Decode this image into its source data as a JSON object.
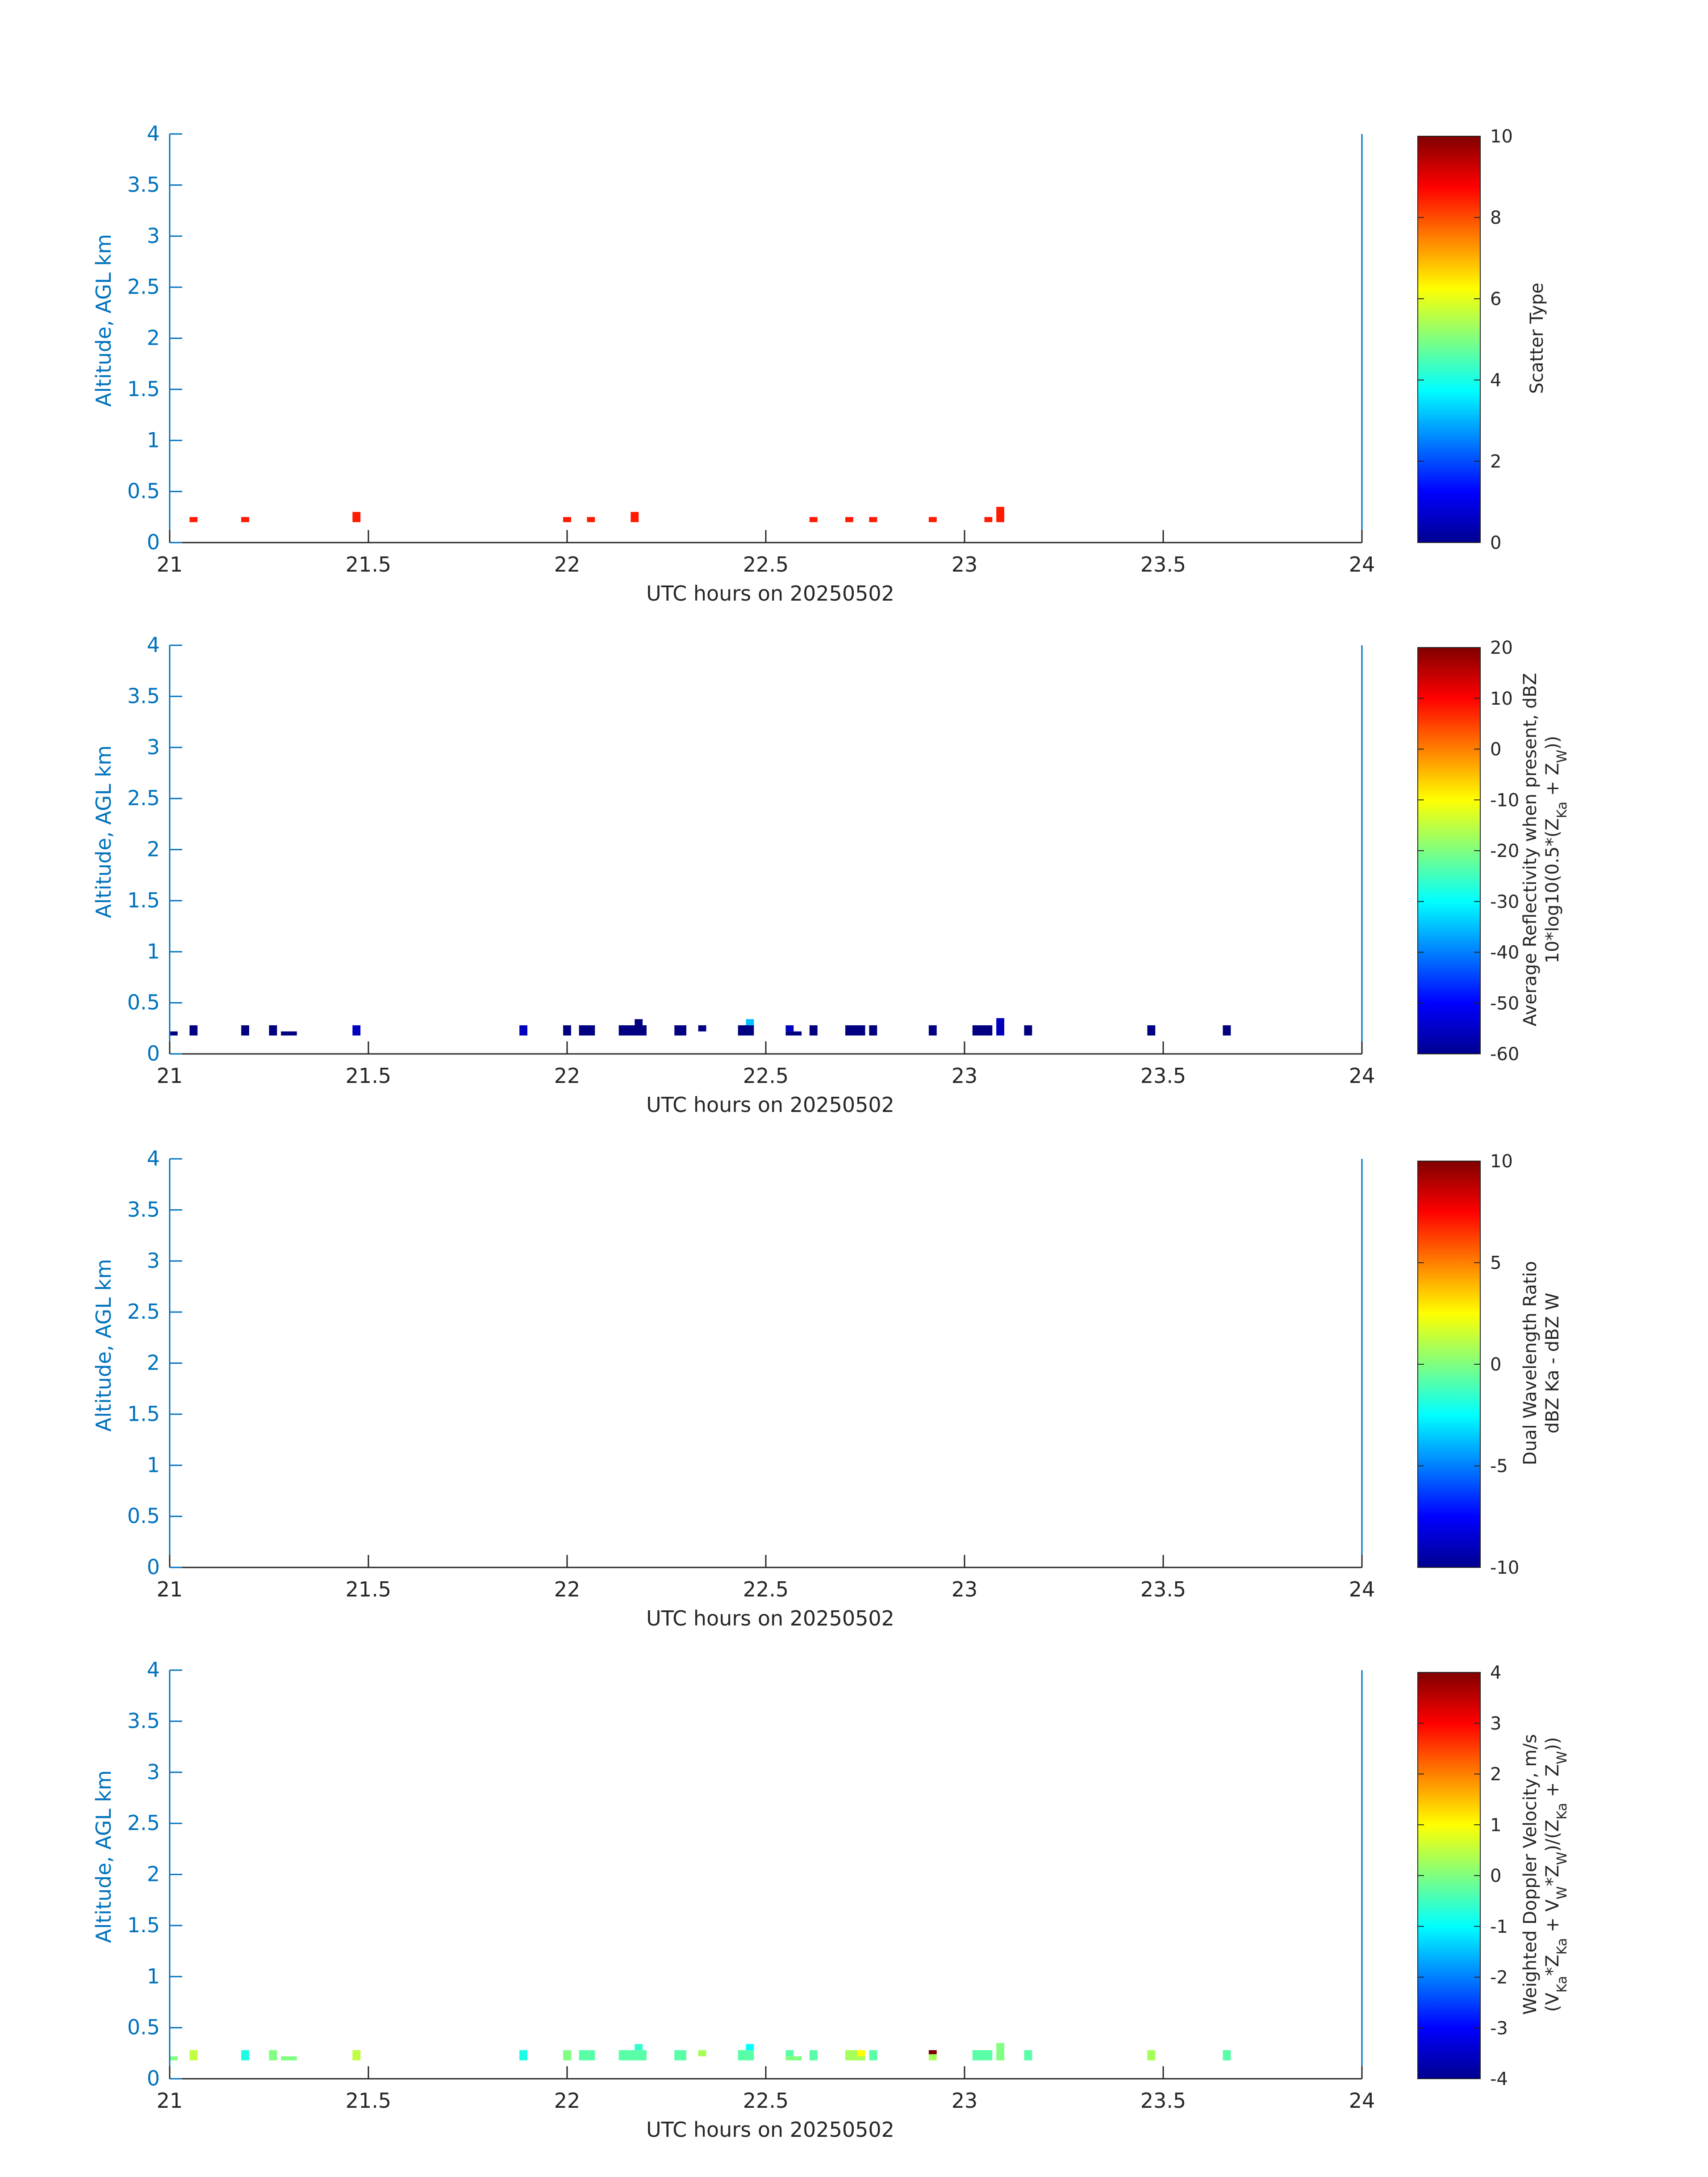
{
  "figure": {
    "date_label": "UTC hours on 20250502",
    "y_axis_label": "Altitude, AGL km"
  },
  "chart_data": [
    {
      "type": "heatmap",
      "xlabel": "UTC hours on 20250502",
      "ylabel": "Altitude, AGL km",
      "xlim": [
        21,
        24
      ],
      "ylim": [
        0,
        4
      ],
      "xticks": [
        "21",
        "21.5",
        "22",
        "22.5",
        "23",
        "23.5",
        "24"
      ],
      "yticks": [
        "0",
        "0.5",
        "1",
        "1.5",
        "2",
        "2.5",
        "3",
        "3.5",
        "4"
      ],
      "colorbar": {
        "label_lines": [
          "Scatter Type"
        ],
        "range": [
          0,
          10
        ],
        "ticks": [
          "0",
          "2",
          "4",
          "6",
          "8",
          "10"
        ],
        "colormap": "jet"
      },
      "cells": [
        {
          "t": [
            21.05,
            21.07
          ],
          "z": [
            0.2,
            0.25
          ],
          "v": 8.5
        },
        {
          "t": [
            21.18,
            21.2
          ],
          "z": [
            0.2,
            0.25
          ],
          "v": 8.5
        },
        {
          "t": [
            21.46,
            21.48
          ],
          "z": [
            0.2,
            0.3
          ],
          "v": 8.5
        },
        {
          "t": [
            21.99,
            22.01
          ],
          "z": [
            0.2,
            0.25
          ],
          "v": 8.5
        },
        {
          "t": [
            22.05,
            22.07
          ],
          "z": [
            0.2,
            0.25
          ],
          "v": 8.5
        },
        {
          "t": [
            22.16,
            22.18
          ],
          "z": [
            0.2,
            0.3
          ],
          "v": 8.5
        },
        {
          "t": [
            22.61,
            22.63
          ],
          "z": [
            0.2,
            0.25
          ],
          "v": 8.5
        },
        {
          "t": [
            22.7,
            22.72
          ],
          "z": [
            0.2,
            0.25
          ],
          "v": 8.5
        },
        {
          "t": [
            22.76,
            22.78
          ],
          "z": [
            0.2,
            0.25
          ],
          "v": 8.5
        },
        {
          "t": [
            22.91,
            22.93
          ],
          "z": [
            0.2,
            0.25
          ],
          "v": 8.5
        },
        {
          "t": [
            23.05,
            23.07
          ],
          "z": [
            0.2,
            0.25
          ],
          "v": 8.5
        },
        {
          "t": [
            23.08,
            23.1
          ],
          "z": [
            0.2,
            0.35
          ],
          "v": 8.5
        }
      ]
    },
    {
      "type": "heatmap",
      "xlabel": "UTC hours on 20250502",
      "ylabel": "Altitude, AGL km",
      "xlim": [
        21,
        24
      ],
      "ylim": [
        0,
        4
      ],
      "xticks": [
        "21",
        "21.5",
        "22",
        "22.5",
        "23",
        "23.5",
        "24"
      ],
      "yticks": [
        "0",
        "0.5",
        "1",
        "1.5",
        "2",
        "2.5",
        "3",
        "3.5",
        "4"
      ],
      "colorbar": {
        "label_lines": [
          "Average Reflectivity when present, dBZ",
          "10*log10(0.5*(Z_Ka + Z_W))"
        ],
        "range": [
          -60,
          20
        ],
        "ticks": [
          "-60",
          "-50",
          "-40",
          "-30",
          "-20",
          "-10",
          "0",
          "10",
          "20"
        ],
        "colormap": "jet"
      },
      "cells": [
        {
          "t": [
            21.0,
            21.02
          ],
          "z": [
            0.18,
            0.22
          ],
          "v": -60
        },
        {
          "t": [
            21.05,
            21.07
          ],
          "z": [
            0.18,
            0.28
          ],
          "v": -60
        },
        {
          "t": [
            21.18,
            21.2
          ],
          "z": [
            0.18,
            0.28
          ],
          "v": -60
        },
        {
          "t": [
            21.25,
            21.27
          ],
          "z": [
            0.18,
            0.28
          ],
          "v": -60
        },
        {
          "t": [
            21.28,
            21.32
          ],
          "z": [
            0.18,
            0.22
          ],
          "v": -60
        },
        {
          "t": [
            21.46,
            21.48
          ],
          "z": [
            0.18,
            0.28
          ],
          "v": -55
        },
        {
          "t": [
            21.88,
            21.9
          ],
          "z": [
            0.18,
            0.28
          ],
          "v": -55
        },
        {
          "t": [
            21.99,
            22.01
          ],
          "z": [
            0.18,
            0.28
          ],
          "v": -60
        },
        {
          "t": [
            22.03,
            22.07
          ],
          "z": [
            0.18,
            0.28
          ],
          "v": -60
        },
        {
          "t": [
            22.13,
            22.2
          ],
          "z": [
            0.18,
            0.28
          ],
          "v": -60
        },
        {
          "t": [
            22.17,
            22.19
          ],
          "z": [
            0.28,
            0.34
          ],
          "v": -60
        },
        {
          "t": [
            22.27,
            22.3
          ],
          "z": [
            0.18,
            0.28
          ],
          "v": -60
        },
        {
          "t": [
            22.33,
            22.35
          ],
          "z": [
            0.22,
            0.28
          ],
          "v": -60
        },
        {
          "t": [
            22.43,
            22.47
          ],
          "z": [
            0.18,
            0.28
          ],
          "v": -60
        },
        {
          "t": [
            22.45,
            22.47
          ],
          "z": [
            0.28,
            0.34
          ],
          "v": -35
        },
        {
          "t": [
            22.55,
            22.59
          ],
          "z": [
            0.18,
            0.22
          ],
          "v": -60
        },
        {
          "t": [
            22.55,
            22.57
          ],
          "z": [
            0.22,
            0.28
          ],
          "v": -55
        },
        {
          "t": [
            22.61,
            22.63
          ],
          "z": [
            0.18,
            0.28
          ],
          "v": -60
        },
        {
          "t": [
            22.7,
            22.75
          ],
          "z": [
            0.18,
            0.28
          ],
          "v": -60
        },
        {
          "t": [
            22.76,
            22.78
          ],
          "z": [
            0.18,
            0.28
          ],
          "v": -60
        },
        {
          "t": [
            22.91,
            22.93
          ],
          "z": [
            0.18,
            0.28
          ],
          "v": -60
        },
        {
          "t": [
            23.02,
            23.07
          ],
          "z": [
            0.18,
            0.28
          ],
          "v": -60
        },
        {
          "t": [
            23.08,
            23.1
          ],
          "z": [
            0.18,
            0.35
          ],
          "v": -55
        },
        {
          "t": [
            23.15,
            23.17
          ],
          "z": [
            0.18,
            0.28
          ],
          "v": -60
        },
        {
          "t": [
            23.46,
            23.48
          ],
          "z": [
            0.18,
            0.28
          ],
          "v": -60
        },
        {
          "t": [
            23.65,
            23.67
          ],
          "z": [
            0.18,
            0.28
          ],
          "v": -60
        }
      ]
    },
    {
      "type": "heatmap",
      "xlabel": "UTC hours on 20250502",
      "ylabel": "Altitude, AGL km",
      "xlim": [
        21,
        24
      ],
      "ylim": [
        0,
        4
      ],
      "xticks": [
        "21",
        "21.5",
        "22",
        "22.5",
        "23",
        "23.5",
        "24"
      ],
      "yticks": [
        "0",
        "0.5",
        "1",
        "1.5",
        "2",
        "2.5",
        "3",
        "3.5",
        "4"
      ],
      "colorbar": {
        "label_lines": [
          "Dual Wavelength Ratio",
          "dBZ Ka - dBZ W"
        ],
        "range": [
          -10,
          10
        ],
        "ticks": [
          "-10",
          "-5",
          "0",
          "5",
          "10"
        ],
        "colormap": "jet"
      },
      "cells": []
    },
    {
      "type": "heatmap",
      "xlabel": "UTC hours on 20250502",
      "ylabel": "Altitude, AGL km",
      "xlim": [
        21,
        24
      ],
      "ylim": [
        0,
        4
      ],
      "xticks": [
        "21",
        "21.5",
        "22",
        "22.5",
        "23",
        "23.5",
        "24"
      ],
      "yticks": [
        "0",
        "0.5",
        "1",
        "1.5",
        "2",
        "2.5",
        "3",
        "3.5",
        "4"
      ],
      "colorbar": {
        "label_lines": [
          "Weighted Doppler Velocity, m/s",
          "(V_Ka*Z_Ka + V_W*Z_W)/(Z_Ka + Z_W))"
        ],
        "range": [
          -4,
          4
        ],
        "ticks": [
          "-4",
          "-3",
          "-2",
          "-1",
          "0",
          "1",
          "2",
          "3",
          "4"
        ],
        "colormap": "jet"
      },
      "cells": [
        {
          "t": [
            21.0,
            21.02
          ],
          "z": [
            0.18,
            0.22
          ],
          "v": 0.0
        },
        {
          "t": [
            21.05,
            21.07
          ],
          "z": [
            0.18,
            0.28
          ],
          "v": 0.5
        },
        {
          "t": [
            21.18,
            21.2
          ],
          "z": [
            0.18,
            0.28
          ],
          "v": -0.8
        },
        {
          "t": [
            21.25,
            21.27
          ],
          "z": [
            0.18,
            0.28
          ],
          "v": 0.0
        },
        {
          "t": [
            21.28,
            21.32
          ],
          "z": [
            0.18,
            0.22
          ],
          "v": 0.0
        },
        {
          "t": [
            21.46,
            21.48
          ],
          "z": [
            0.18,
            0.28
          ],
          "v": 0.5
        },
        {
          "t": [
            21.88,
            21.9
          ],
          "z": [
            0.18,
            0.28
          ],
          "v": -0.8
        },
        {
          "t": [
            21.99,
            22.01
          ],
          "z": [
            0.18,
            0.28
          ],
          "v": 0.0
        },
        {
          "t": [
            22.03,
            22.07
          ],
          "z": [
            0.18,
            0.28
          ],
          "v": -0.3
        },
        {
          "t": [
            22.13,
            22.2
          ],
          "z": [
            0.18,
            0.28
          ],
          "v": -0.3
        },
        {
          "t": [
            22.17,
            22.19
          ],
          "z": [
            0.28,
            0.34
          ],
          "v": -0.6
        },
        {
          "t": [
            22.27,
            22.3
          ],
          "z": [
            0.18,
            0.28
          ],
          "v": -0.3
        },
        {
          "t": [
            22.33,
            22.35
          ],
          "z": [
            0.22,
            0.28
          ],
          "v": 0.3
        },
        {
          "t": [
            22.43,
            22.47
          ],
          "z": [
            0.18,
            0.28
          ],
          "v": -0.3
        },
        {
          "t": [
            22.45,
            22.47
          ],
          "z": [
            0.28,
            0.34
          ],
          "v": -1.0
        },
        {
          "t": [
            22.55,
            22.59
          ],
          "z": [
            0.18,
            0.22
          ],
          "v": 0.0
        },
        {
          "t": [
            22.55,
            22.57
          ],
          "z": [
            0.22,
            0.28
          ],
          "v": -0.3
        },
        {
          "t": [
            22.61,
            22.63
          ],
          "z": [
            0.18,
            0.28
          ],
          "v": -0.3
        },
        {
          "t": [
            22.7,
            22.75
          ],
          "z": [
            0.18,
            0.28
          ],
          "v": 0.3
        },
        {
          "t": [
            22.73,
            22.75
          ],
          "z": [
            0.22,
            0.28
          ],
          "v": 1.0
        },
        {
          "t": [
            22.76,
            22.78
          ],
          "z": [
            0.18,
            0.28
          ],
          "v": -0.3
        },
        {
          "t": [
            22.91,
            22.93
          ],
          "z": [
            0.18,
            0.24
          ],
          "v": 0.3
        },
        {
          "t": [
            22.91,
            22.93
          ],
          "z": [
            0.24,
            0.28
          ],
          "v": 4.0
        },
        {
          "t": [
            23.02,
            23.07
          ],
          "z": [
            0.18,
            0.28
          ],
          "v": -0.3
        },
        {
          "t": [
            23.08,
            23.1
          ],
          "z": [
            0.18,
            0.35
          ],
          "v": 0.0
        },
        {
          "t": [
            23.15,
            23.17
          ],
          "z": [
            0.18,
            0.28
          ],
          "v": -0.3
        },
        {
          "t": [
            23.46,
            23.48
          ],
          "z": [
            0.18,
            0.28
          ],
          "v": 0.3
        },
        {
          "t": [
            23.65,
            23.67
          ],
          "z": [
            0.18,
            0.28
          ],
          "v": -0.3
        }
      ]
    }
  ]
}
